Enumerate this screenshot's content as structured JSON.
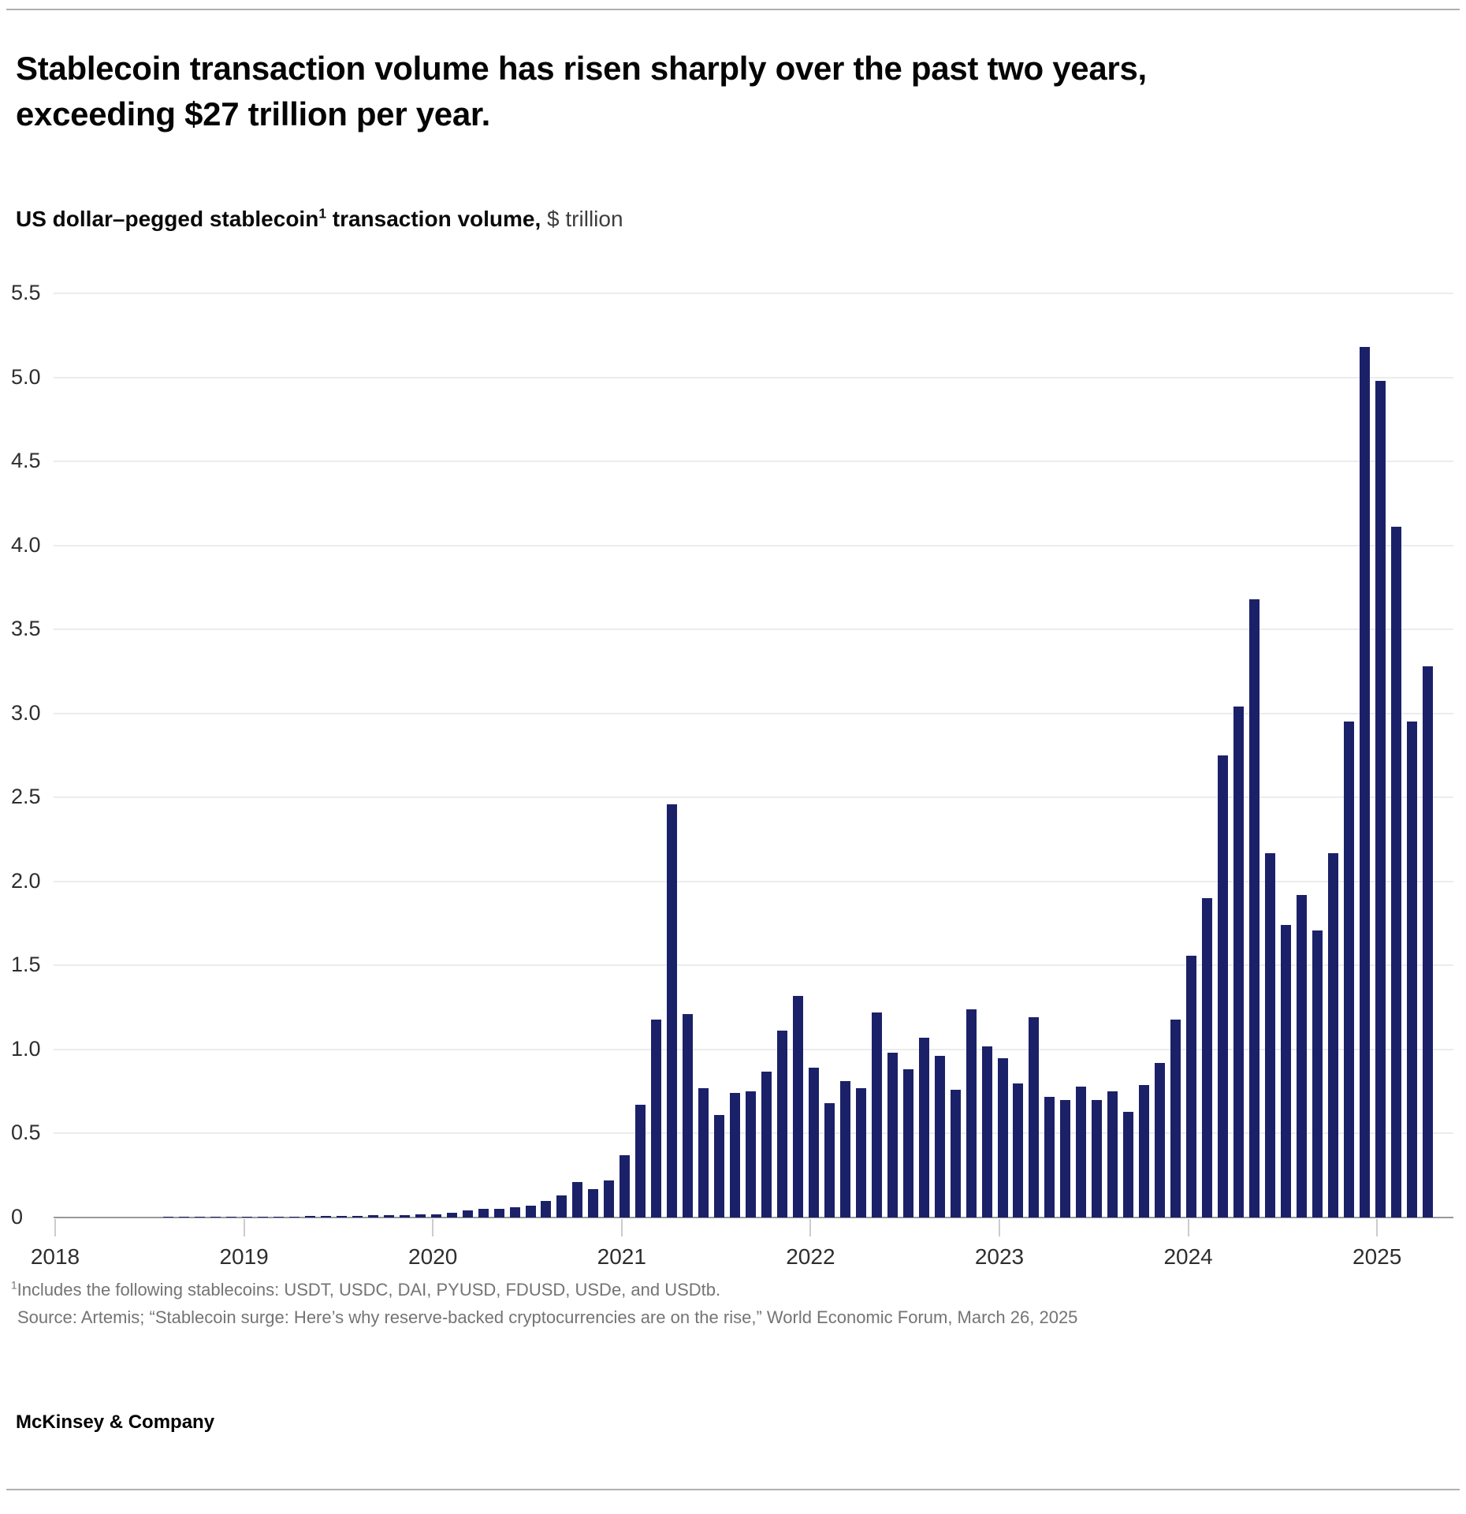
{
  "header": {
    "title_line1": "Stablecoin transaction volume has risen sharply over the past two years,",
    "title_line2": "exceeding $27 trillion per year."
  },
  "chart": {
    "heading_bold_pre": "US dollar–pegged stablecoin",
    "heading_superscript": "1",
    "heading_bold_post": " transaction volume,",
    "heading_unit": " $ trillion"
  },
  "chart_data": {
    "type": "bar",
    "title": "US dollar–pegged stablecoin transaction volume, $ trillion",
    "xlabel": "",
    "ylabel": "$ trillion",
    "bar_color": "#1b2168",
    "grid": true,
    "ylim": [
      0,
      5.5
    ],
    "ytick_labels": [
      "0",
      "0.5",
      "1.0",
      "1.5",
      "2.0",
      "2.5",
      "3.0",
      "3.5",
      "4.0",
      "4.5",
      "5.0",
      "5.5"
    ],
    "year_labels": [
      "2018",
      "2019",
      "2020",
      "2021",
      "2022",
      "2023",
      "2024",
      "2025"
    ],
    "start_month": "2018-01",
    "end_month": "2025-04",
    "series": [
      {
        "name": "US dollar-pegged stablecoin transaction volume ($ trillion)",
        "values": [
          0.001,
          0.001,
          0.001,
          0.002,
          0.002,
          0.002,
          0.002,
          0.003,
          0.003,
          0.003,
          0.004,
          0.004,
          0.004,
          0.005,
          0.006,
          0.007,
          0.008,
          0.009,
          0.01,
          0.01,
          0.012,
          0.014,
          0.016,
          0.018,
          0.02,
          0.03,
          0.04,
          0.05,
          0.05,
          0.06,
          0.07,
          0.1,
          0.13,
          0.21,
          0.17,
          0.22,
          0.37,
          0.67,
          1.18,
          2.46,
          1.21,
          0.77,
          0.61,
          0.74,
          0.75,
          0.87,
          1.11,
          1.32,
          0.89,
          0.68,
          0.81,
          0.77,
          1.22,
          0.98,
          0.88,
          1.07,
          0.96,
          0.76,
          1.24,
          1.02,
          0.95,
          0.8,
          1.19,
          0.72,
          0.7,
          0.78,
          0.7,
          0.75,
          0.63,
          0.79,
          0.92,
          1.18,
          1.56,
          1.9,
          2.75,
          3.04,
          3.68,
          2.17,
          1.74,
          1.92,
          1.71,
          2.17,
          2.95,
          5.18,
          4.98,
          4.11,
          2.95,
          3.28
        ]
      }
    ],
    "values_by_year": {
      "2018": [
        0.001,
        0.001,
        0.001,
        0.002,
        0.002,
        0.002,
        0.002,
        0.003,
        0.003,
        0.003,
        0.004,
        0.004
      ],
      "2019": [
        0.004,
        0.005,
        0.006,
        0.007,
        0.008,
        0.009,
        0.01,
        0.01,
        0.012,
        0.014,
        0.016,
        0.018
      ],
      "2020": [
        0.02,
        0.03,
        0.04,
        0.05,
        0.05,
        0.06,
        0.07,
        0.1,
        0.13,
        0.21,
        0.17,
        0.22
      ],
      "2021": [
        0.37,
        0.67,
        1.18,
        2.46,
        1.21,
        0.77,
        0.61,
        0.74,
        0.75,
        0.87,
        1.11,
        1.32
      ],
      "2022": [
        0.89,
        0.68,
        0.81,
        0.77,
        1.22,
        0.98,
        0.88,
        1.07,
        0.96,
        0.76,
        1.24,
        1.02
      ],
      "2023": [
        0.95,
        0.8,
        1.19,
        0.72,
        0.7,
        0.78,
        0.7,
        0.75,
        0.63,
        0.79,
        0.92,
        1.18
      ],
      "2024": [
        1.56,
        1.9,
        2.75,
        3.04,
        3.68,
        2.17,
        1.74,
        1.92,
        1.71,
        2.17,
        2.95,
        5.18
      ],
      "2025": [
        4.98,
        4.11,
        2.95,
        3.28
      ]
    },
    "legend_position": "none"
  },
  "footnotes": {
    "note1_superscript": "1",
    "note1_text": "Includes the following stablecoins: USDT, USDC, DAI, PYUSD, FDUSD, USDe, and USDtb.",
    "source_text": "Source: Artemis; “Stablecoin surge: Here’s why reserve-backed cryptocurrencies are on the rise,” World Economic Forum, March 26, 2025"
  },
  "branding": {
    "logo_text": "McKinsey & Company"
  }
}
